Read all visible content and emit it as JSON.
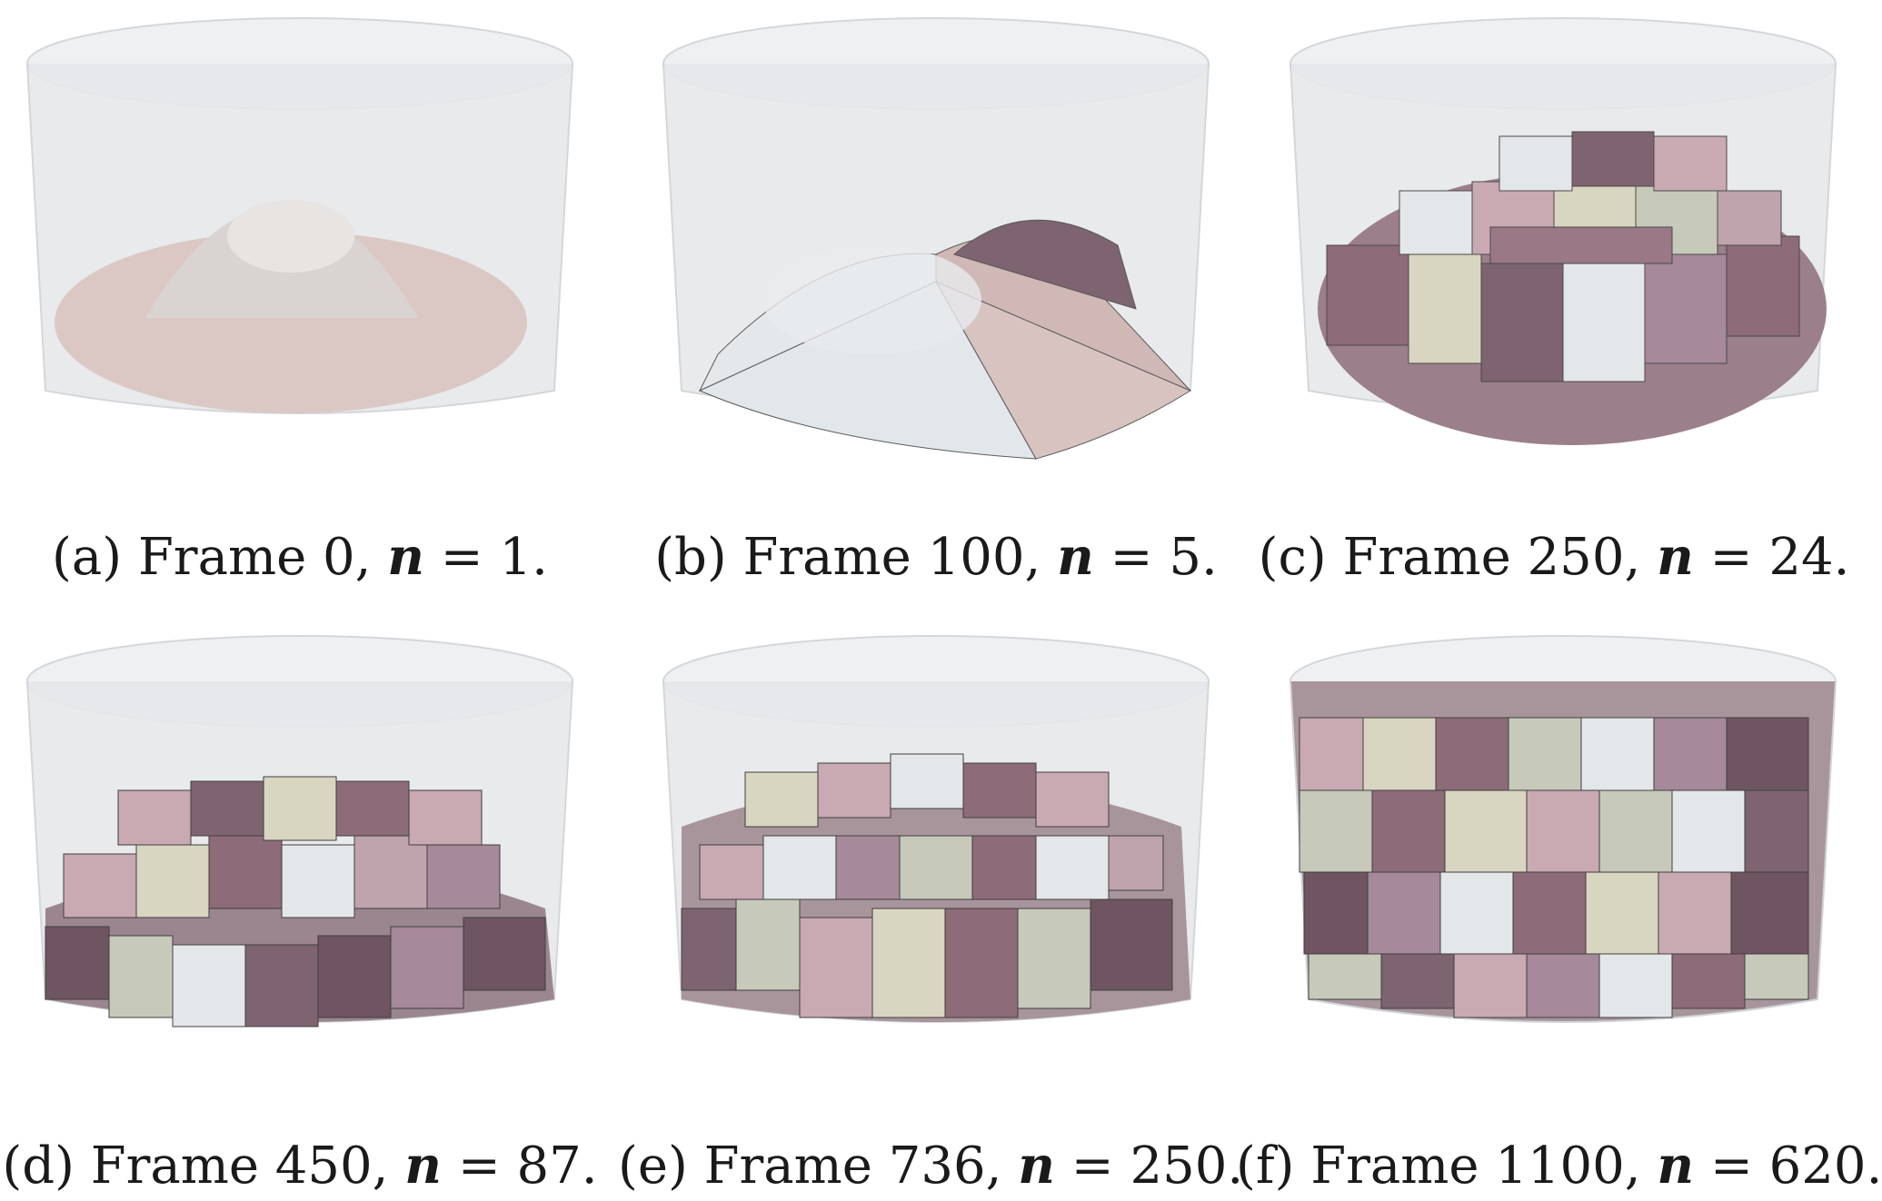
{
  "panels": [
    {
      "label": "(a)",
      "frame_text": "Frame 0,",
      "n_symbol": "n",
      "eq_text": "= 1.",
      "cells": 1
    },
    {
      "label": "(b)",
      "frame_text": "Frame 100,",
      "n_symbol": "n",
      "eq_text": "= 5.",
      "cells": 5
    },
    {
      "label": "(c)",
      "frame_text": "Frame 250,",
      "n_symbol": "n",
      "eq_text": "= 24.",
      "cells": 24
    },
    {
      "label": "(d)",
      "frame_text": "Frame 450,",
      "n_symbol": "n",
      "eq_text": "= 87.",
      "cells": 87
    },
    {
      "label": "(e)",
      "frame_text": "Frame 736,",
      "n_symbol": "n",
      "eq_text": "= 250.",
      "cells": 250
    },
    {
      "label": "(f)",
      "frame_text": "Frame 1100,",
      "n_symbol": "n",
      "eq_text": "= 620.",
      "cells": 620
    }
  ],
  "palette": {
    "container_fill": "#dfe2e6",
    "container_stroke": "#c9ccd0",
    "cell_colors": [
      "#8e6b78",
      "#a6899a",
      "#c9a9b2",
      "#d8d6c0",
      "#c7c9bb",
      "#e4e7ea",
      "#6e5561",
      "#bfa4ad"
    ],
    "base_disc": "#dcc8c4",
    "edge_color": "#5a5a5a"
  }
}
